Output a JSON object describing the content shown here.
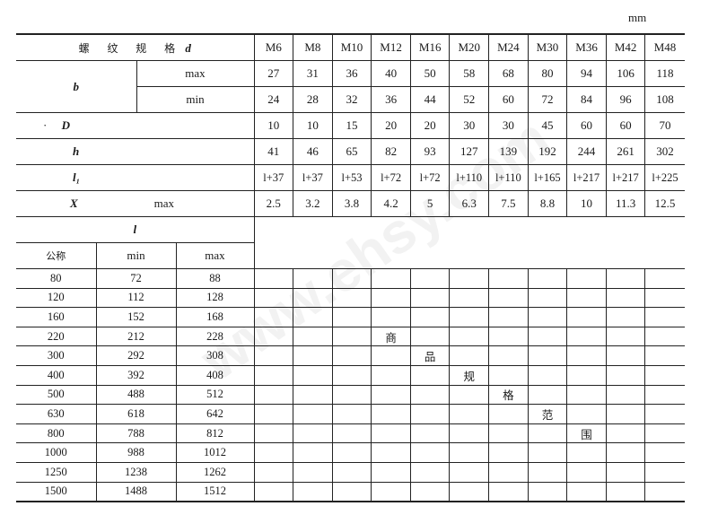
{
  "unit": "mm",
  "header": {
    "label": "螺 纹 规 格",
    "var": "d",
    "sizes": [
      "M6",
      "M8",
      "M10",
      "M12",
      "M16",
      "M20",
      "M24",
      "M30",
      "M36",
      "M42",
      "M48"
    ]
  },
  "rows": {
    "b": {
      "label": "b",
      "max_label": "max",
      "min_label": "min",
      "max": [
        "27",
        "31",
        "36",
        "40",
        "50",
        "58",
        "68",
        "80",
        "94",
        "106",
        "118"
      ],
      "min": [
        "24",
        "28",
        "32",
        "36",
        "44",
        "52",
        "60",
        "72",
        "84",
        "96",
        "108"
      ]
    },
    "D": {
      "label": "D",
      "values": [
        "10",
        "10",
        "15",
        "20",
        "20",
        "30",
        "30",
        "45",
        "60",
        "60",
        "70"
      ]
    },
    "h": {
      "label": "h",
      "values": [
        "41",
        "46",
        "65",
        "82",
        "93",
        "127",
        "139",
        "192",
        "244",
        "261",
        "302"
      ]
    },
    "l1": {
      "label": "l₁",
      "values": [
        "l+37",
        "l+37",
        "l+53",
        "l+72",
        "l+72",
        "l+110",
        "l+110",
        "l+165",
        "l+217",
        "l+217",
        "l+225"
      ]
    },
    "X": {
      "label": "X",
      "sub": "max",
      "values": [
        "2.5",
        "3.2",
        "3.8",
        "4.2",
        "5",
        "6.3",
        "7.5",
        "8.8",
        "10",
        "11.3",
        "12.5"
      ]
    }
  },
  "l_table": {
    "label": "l",
    "col_nominal": "公称",
    "col_min": "min",
    "col_max": "max",
    "rows": [
      [
        "80",
        "72",
        "88"
      ],
      [
        "120",
        "112",
        "128"
      ],
      [
        "160",
        "152",
        "168"
      ],
      [
        "220",
        "212",
        "228"
      ],
      [
        "300",
        "292",
        "308"
      ],
      [
        "400",
        "392",
        "408"
      ],
      [
        "500",
        "488",
        "512"
      ],
      [
        "630",
        "618",
        "642"
      ],
      [
        "800",
        "788",
        "812"
      ],
      [
        "1000",
        "988",
        "1012"
      ],
      [
        "1250",
        "1238",
        "1262"
      ],
      [
        "1500",
        "1488",
        "1512"
      ]
    ]
  },
  "range_marks": [
    {
      "row": 3,
      "col": 3,
      "text": "商"
    },
    {
      "row": 4,
      "col": 4,
      "text": "品"
    },
    {
      "row": 5,
      "col": 5,
      "text": "规"
    },
    {
      "row": 6,
      "col": 6,
      "text": "格"
    },
    {
      "row": 7,
      "col": 7,
      "text": "范"
    },
    {
      "row": 8,
      "col": 8,
      "text": "围"
    }
  ],
  "watermark": "www.ehsy.com"
}
